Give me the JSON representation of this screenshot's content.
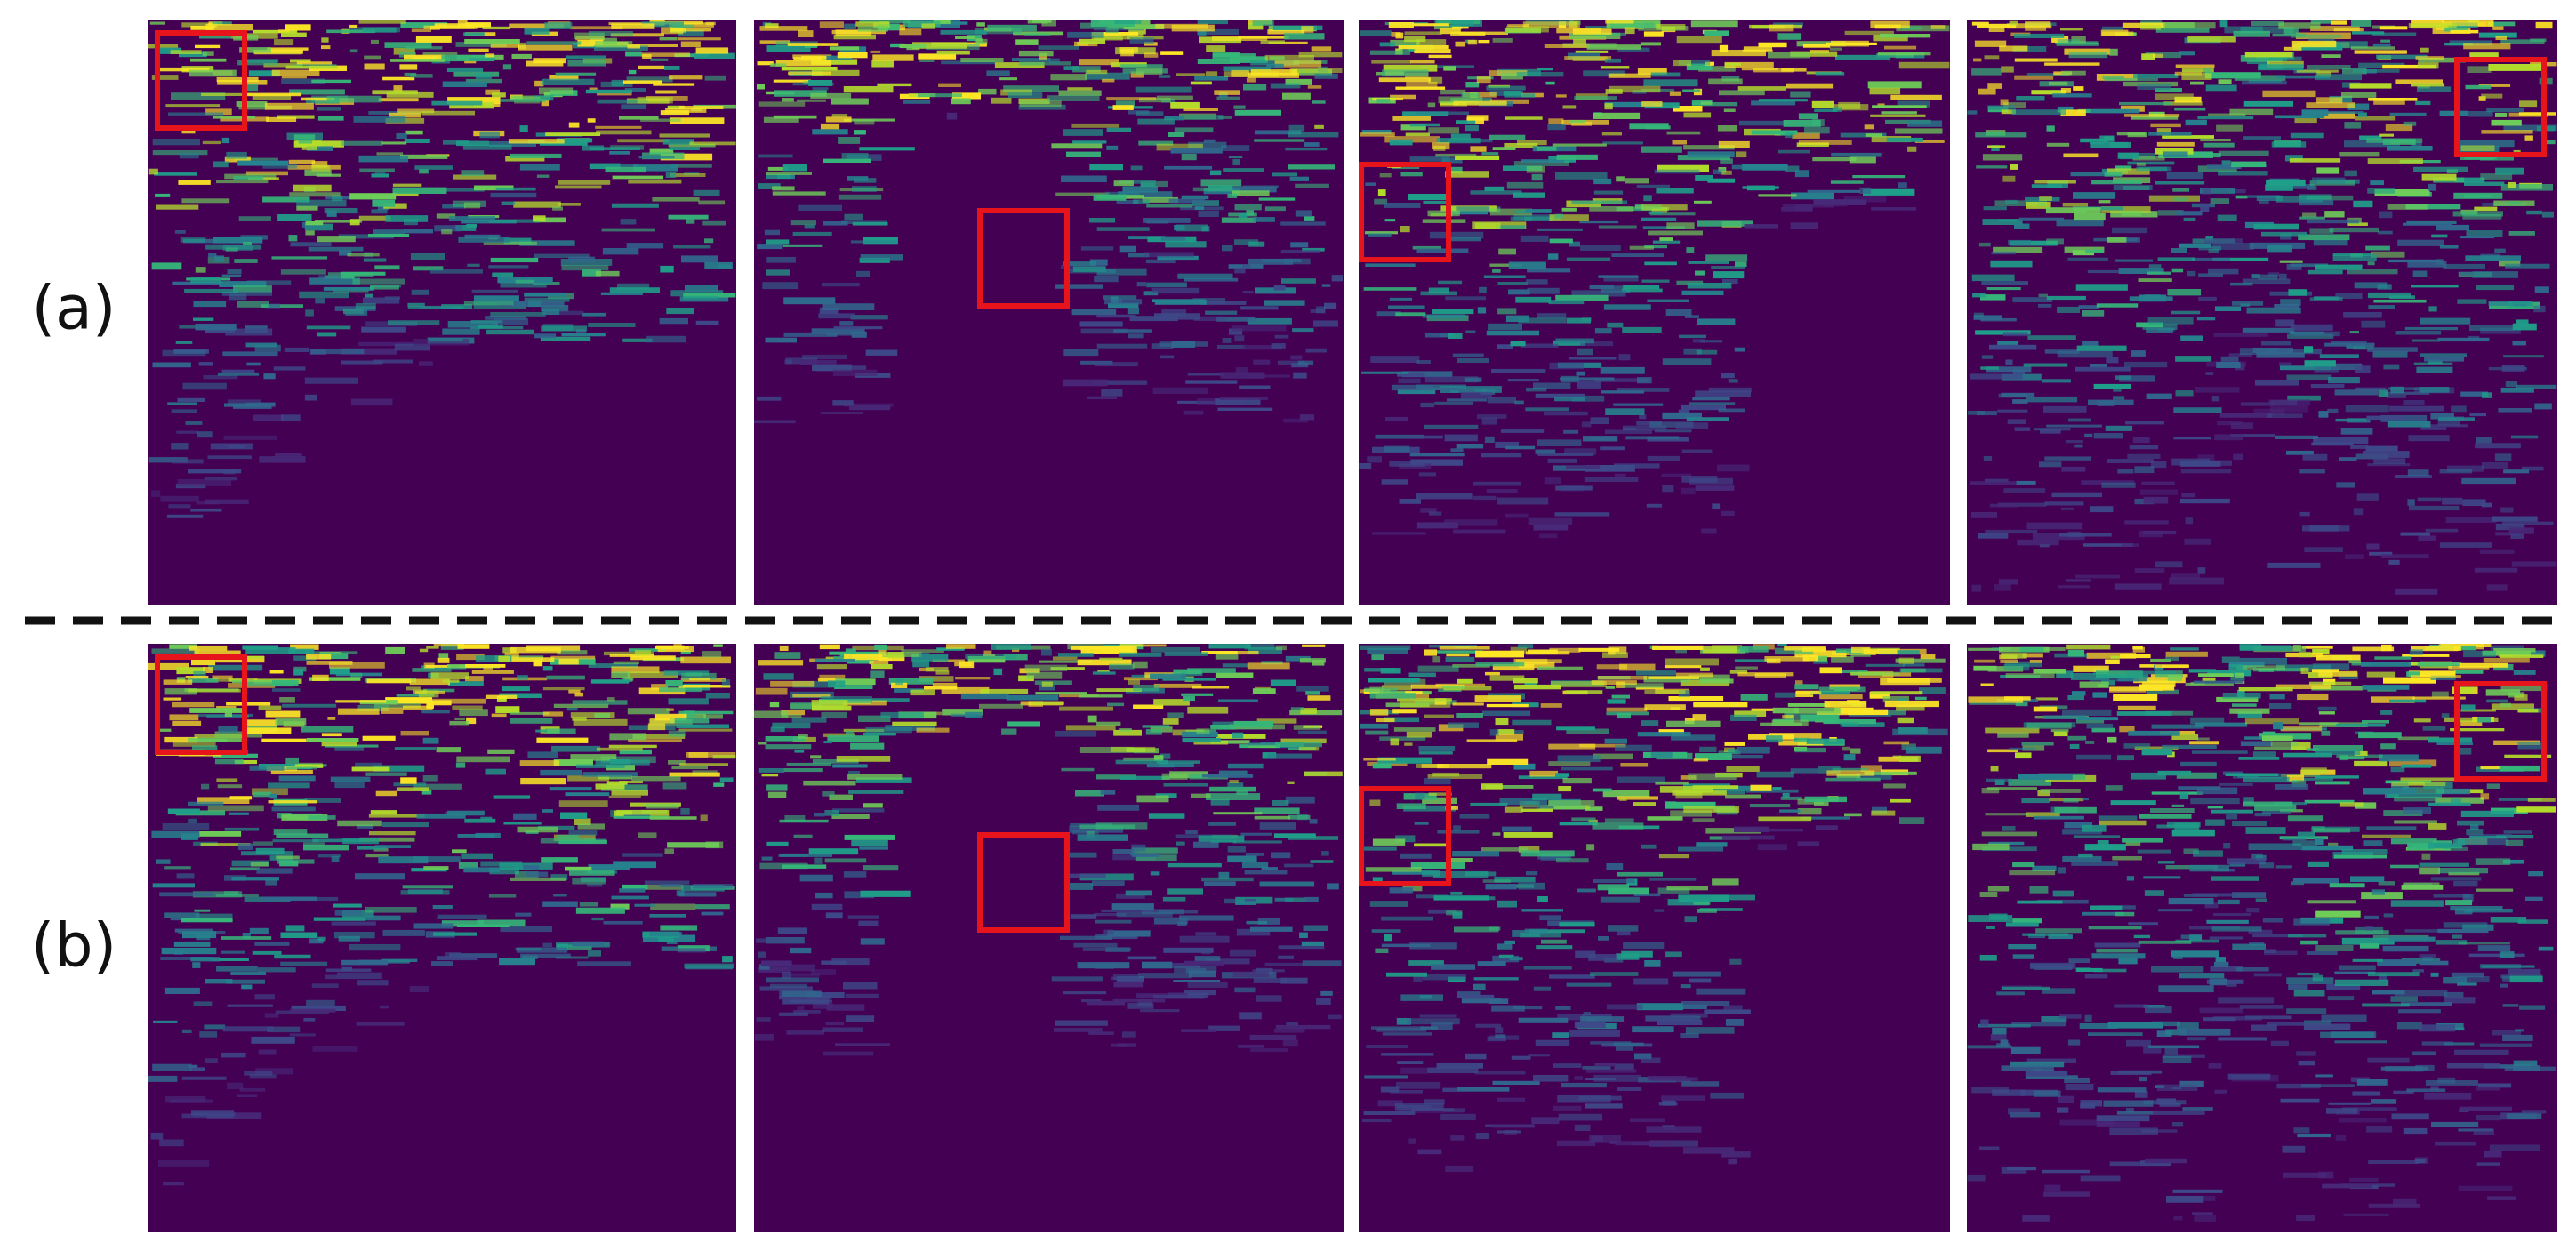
{
  "rows": [
    {
      "label": "(a)"
    },
    {
      "label": "(b)"
    }
  ]
}
